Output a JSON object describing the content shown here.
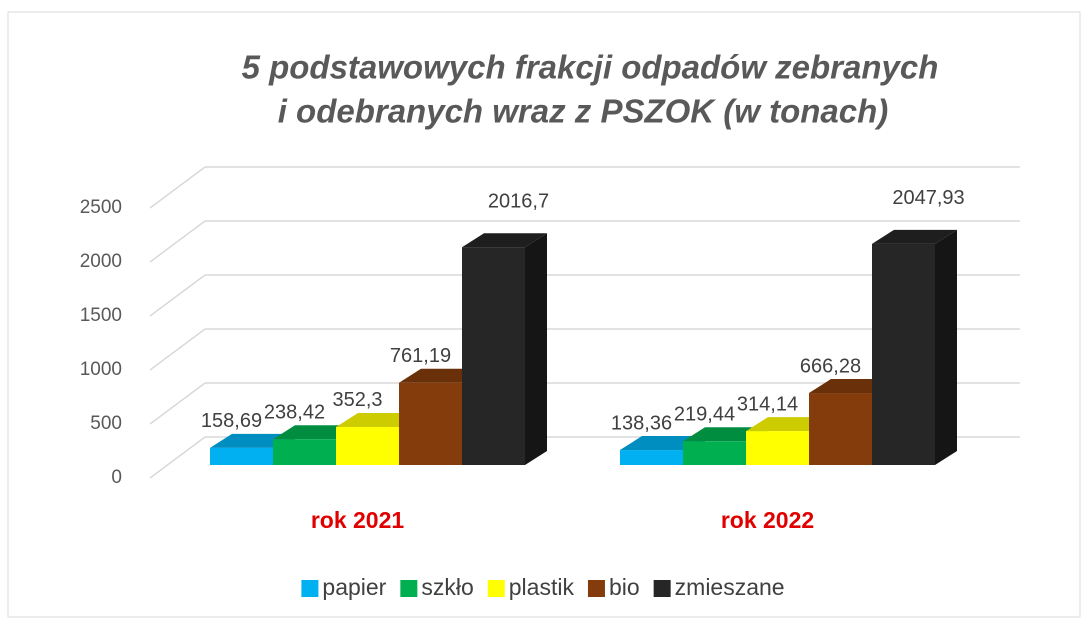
{
  "chart_data": {
    "type": "bar3d",
    "title": [
      "5 podstawowych frakcji odpadów zebranych",
      "i odebranych wraz z PSZOK (w tonach)"
    ],
    "categories": [
      "rok 2021",
      "rok 2022"
    ],
    "series": [
      {
        "name": "papier",
        "color": "#00b0f0",
        "values": [
          158.69,
          138.36
        ],
        "value_labels": [
          "158,69",
          "138,36"
        ]
      },
      {
        "name": "szkło",
        "color": "#00b050",
        "values": [
          238.42,
          219.44
        ],
        "value_labels": [
          "238,42",
          "219,44"
        ]
      },
      {
        "name": "plastik",
        "color": "#ffff00",
        "values": [
          352.3,
          314.14
        ],
        "value_labels": [
          "352,3",
          "314,14"
        ]
      },
      {
        "name": "bio",
        "color": "#843c0c",
        "values": [
          761.19,
          666.28
        ],
        "value_labels": [
          "761,19",
          "666,28"
        ]
      },
      {
        "name": "zmieszane",
        "color": "#262626",
        "values": [
          2016.7,
          2047.93
        ],
        "value_labels": [
          "2016,7",
          "2047,93"
        ]
      }
    ],
    "ylim": [
      0,
      2500
    ],
    "yticks": [
      0,
      500,
      1000,
      1500,
      2000,
      2500
    ],
    "grid": true,
    "legend": "bottom"
  }
}
